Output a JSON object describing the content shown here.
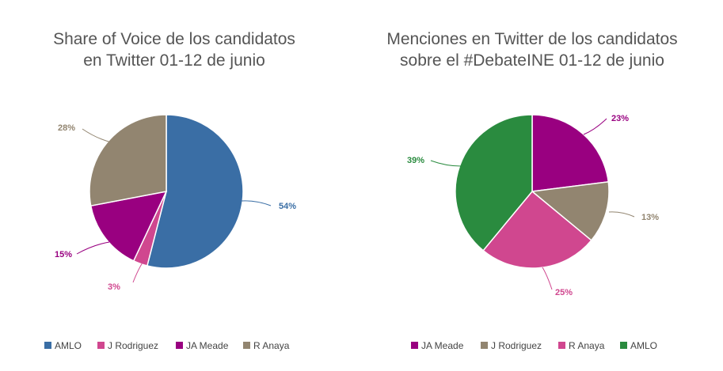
{
  "chart_data": [
    {
      "type": "pie",
      "title_lines": [
        "Share of Voice de los candidatos",
        "en Twitter 01-12 de junio"
      ],
      "slices": [
        {
          "name": "AMLO",
          "value": 54,
          "label": "54%",
          "color": "#3a6ea5"
        },
        {
          "name": "J Rodriguez",
          "value": 3,
          "label": "3%",
          "color": "#d0478f"
        },
        {
          "name": "JA Meade",
          "value": 15,
          "label": "15%",
          "color": "#990080"
        },
        {
          "name": "R Anaya",
          "value": 28,
          "label": "28%",
          "color": "#928570"
        }
      ],
      "legend": [
        {
          "name": "AMLO",
          "color": "#3a6ea5"
        },
        {
          "name": "J Rodriguez",
          "color": "#d0478f"
        },
        {
          "name": "JA Meade",
          "color": "#990080"
        },
        {
          "name": "R Anaya",
          "color": "#928570"
        }
      ],
      "legend_position": "bottom"
    },
    {
      "type": "pie",
      "title_lines": [
        "Menciones en Twitter de los candidatos",
        "sobre el #DebateINE 01-12 de junio"
      ],
      "slices": [
        {
          "name": "JA Meade",
          "value": 23,
          "label": "23%",
          "color": "#990080"
        },
        {
          "name": "J Rodriguez",
          "value": 13,
          "label": "13%",
          "color": "#928570"
        },
        {
          "name": "R Anaya",
          "value": 25,
          "label": "25%",
          "color": "#d0478f"
        },
        {
          "name": "AMLO",
          "value": 39,
          "label": "39%",
          "color": "#2a8b3f"
        }
      ],
      "legend": [
        {
          "name": "JA Meade",
          "color": "#990080"
        },
        {
          "name": "J Rodriguez",
          "color": "#928570"
        },
        {
          "name": "R Anaya",
          "color": "#d0478f"
        },
        {
          "name": "AMLO",
          "color": "#2a8b3f"
        }
      ],
      "legend_position": "bottom"
    }
  ]
}
